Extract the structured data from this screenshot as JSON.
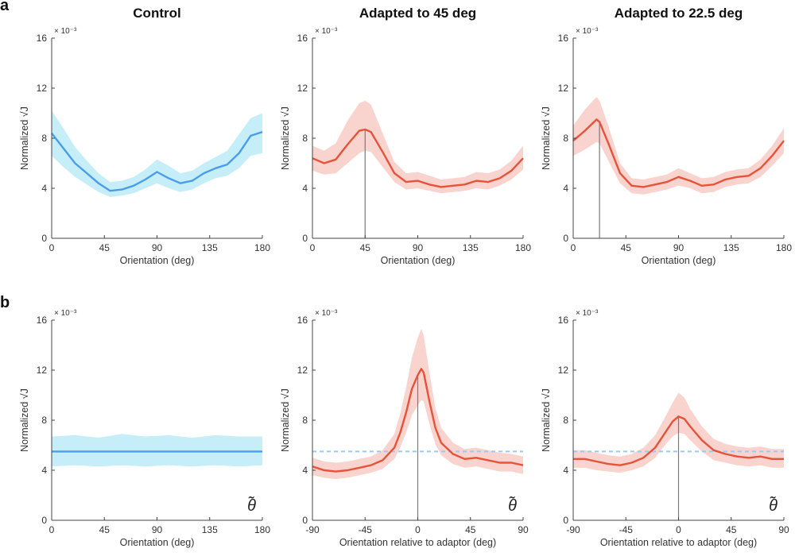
{
  "figure": {
    "row_labels": [
      "a",
      "b"
    ],
    "colors": {
      "control_line": "#4a9de8",
      "control_band": "#c5eef9",
      "adapted_line": "#e5533a",
      "adapted_band": "#f9d3cd",
      "reference_dashed": "#9cc8f2",
      "adaptor_marker": "#7a7a7a",
      "axis": "#444444"
    }
  },
  "chart_data": [
    {
      "id": "a1",
      "type": "line",
      "title": "Control",
      "xlabel": "Orientation (deg)",
      "ylabel": "Normalized √J",
      "y_exponent": "× 10⁻³",
      "xlim": [
        0,
        180
      ],
      "ylim": [
        0,
        16
      ],
      "xticks": [
        0,
        45,
        90,
        135,
        180
      ],
      "yticks": [
        0,
        4,
        8,
        12,
        16
      ],
      "adaptor": null,
      "reference": null,
      "theta_symbol": "",
      "series": [
        {
          "name": "Control",
          "x": [
            0,
            10,
            20,
            30,
            40,
            50,
            60,
            70,
            80,
            90,
            100,
            110,
            120,
            130,
            140,
            150,
            160,
            170,
            180
          ],
          "y": [
            8.4,
            7.2,
            6.0,
            5.2,
            4.4,
            3.8,
            3.9,
            4.2,
            4.7,
            5.3,
            4.8,
            4.4,
            4.6,
            5.2,
            5.6,
            5.9,
            6.8,
            8.2,
            8.5
          ],
          "lower": [
            6.6,
            5.7,
            4.9,
            4.3,
            3.7,
            3.3,
            3.4,
            3.6,
            4.0,
            4.4,
            4.0,
            3.7,
            3.9,
            4.4,
            4.8,
            5.0,
            5.6,
            6.6,
            6.8
          ],
          "upper": [
            10.2,
            8.8,
            7.3,
            6.2,
            5.2,
            4.5,
            4.6,
            4.9,
            5.5,
            6.3,
            5.8,
            5.2,
            5.4,
            6.0,
            6.5,
            7.0,
            8.3,
            9.6,
            10.0
          ]
        }
      ]
    },
    {
      "id": "a2",
      "type": "line",
      "title": "Adapted to 45 deg",
      "xlabel": "Orientation (deg)",
      "ylabel": "Normalized √J",
      "y_exponent": "× 10⁻³",
      "xlim": [
        0,
        180
      ],
      "ylim": [
        0,
        16
      ],
      "xticks": [
        0,
        45,
        90,
        135,
        180
      ],
      "yticks": [
        0,
        4,
        8,
        12,
        16
      ],
      "adaptor": 45,
      "reference": null,
      "theta_symbol": "",
      "series": [
        {
          "name": "Adapted to 45 deg",
          "x": [
            0,
            10,
            20,
            30,
            40,
            45,
            50,
            60,
            70,
            80,
            90,
            100,
            110,
            120,
            130,
            140,
            150,
            160,
            170,
            180
          ],
          "y": [
            6.4,
            6.0,
            6.3,
            7.5,
            8.6,
            8.7,
            8.5,
            6.9,
            5.2,
            4.5,
            4.6,
            4.3,
            4.1,
            4.2,
            4.3,
            4.6,
            4.5,
            4.8,
            5.4,
            6.4
          ],
          "lower": [
            5.4,
            5.1,
            5.2,
            6.0,
            6.8,
            7.0,
            6.9,
            5.7,
            4.5,
            3.9,
            4.0,
            3.8,
            3.6,
            3.7,
            3.8,
            4.0,
            3.9,
            4.2,
            4.7,
            5.5
          ],
          "upper": [
            7.4,
            7.0,
            7.6,
            9.4,
            10.8,
            11.0,
            10.7,
            8.4,
            6.1,
            5.2,
            5.3,
            5.0,
            4.7,
            4.8,
            4.9,
            5.3,
            5.2,
            5.5,
            6.2,
            7.4
          ]
        }
      ]
    },
    {
      "id": "a3",
      "type": "line",
      "title": "Adapted to 22.5 deg",
      "xlabel": "Orientation (deg)",
      "ylabel": "Normalized √J",
      "y_exponent": "× 10⁻³",
      "xlim": [
        0,
        180
      ],
      "ylim": [
        0,
        16
      ],
      "xticks": [
        0,
        45,
        90,
        135,
        180
      ],
      "yticks": [
        0,
        4,
        8,
        12,
        16
      ],
      "adaptor": 22.5,
      "reference": null,
      "theta_symbol": "",
      "series": [
        {
          "name": "Adapted to 22.5 deg",
          "x": [
            0,
            10,
            20,
            22.5,
            30,
            40,
            50,
            60,
            70,
            80,
            90,
            100,
            110,
            120,
            130,
            140,
            150,
            160,
            170,
            180
          ],
          "y": [
            7.8,
            8.6,
            9.5,
            9.3,
            7.6,
            5.2,
            4.2,
            4.1,
            4.3,
            4.5,
            4.9,
            4.6,
            4.2,
            4.3,
            4.7,
            4.9,
            5.0,
            5.6,
            6.6,
            7.8
          ],
          "lower": [
            6.6,
            7.1,
            7.7,
            7.6,
            6.2,
            4.4,
            3.6,
            3.5,
            3.7,
            3.9,
            4.2,
            4.0,
            3.6,
            3.7,
            4.1,
            4.3,
            4.4,
            4.9,
            5.8,
            6.8
          ],
          "upper": [
            9.0,
            10.3,
            11.3,
            11.0,
            9.0,
            6.0,
            4.8,
            4.7,
            4.9,
            5.1,
            5.6,
            5.2,
            4.8,
            4.9,
            5.3,
            5.5,
            5.6,
            6.3,
            7.4,
            8.8
          ]
        }
      ]
    },
    {
      "id": "b1",
      "type": "line",
      "title": "",
      "xlabel": "Orientation (deg)",
      "ylabel": "Normalized √J",
      "y_exponent": "× 10⁻³",
      "xlim": [
        0,
        180
      ],
      "ylim": [
        0,
        16
      ],
      "xticks": [
        0,
        45,
        90,
        135,
        180
      ],
      "yticks": [
        0,
        4,
        8,
        12,
        16
      ],
      "adaptor": null,
      "reference": null,
      "theta_symbol": "θ̃",
      "series": [
        {
          "name": "Control",
          "x": [
            0,
            20,
            40,
            60,
            80,
            100,
            120,
            140,
            160,
            180
          ],
          "y": [
            5.5,
            5.5,
            5.5,
            5.5,
            5.5,
            5.5,
            5.5,
            5.5,
            5.5,
            5.5
          ],
          "lower": [
            4.3,
            4.4,
            4.3,
            4.4,
            4.3,
            4.4,
            4.3,
            4.4,
            4.3,
            4.4
          ],
          "upper": [
            6.7,
            6.8,
            6.6,
            6.9,
            6.7,
            6.8,
            6.6,
            6.8,
            6.7,
            6.7
          ]
        }
      ]
    },
    {
      "id": "b2",
      "type": "line",
      "title": "",
      "xlabel": "Orientation relative to adaptor (deg)",
      "ylabel": "Normalized √J",
      "y_exponent": "× 10⁻³",
      "xlim": [
        -90,
        90
      ],
      "ylim": [
        0,
        16
      ],
      "xticks": [
        -90,
        -45,
        0,
        45,
        90
      ],
      "yticks": [
        0,
        4,
        8,
        12,
        16
      ],
      "adaptor": 0,
      "reference": 5.5,
      "theta_symbol": "θ̃",
      "series": [
        {
          "name": "Adapted to 45 deg",
          "x": [
            -90,
            -80,
            -70,
            -60,
            -50,
            -40,
            -30,
            -20,
            -15,
            -10,
            -5,
            0,
            3,
            5,
            10,
            15,
            20,
            30,
            40,
            50,
            60,
            70,
            80,
            90
          ],
          "y": [
            4.3,
            4.0,
            3.9,
            4.0,
            4.2,
            4.4,
            4.8,
            5.8,
            7.0,
            8.6,
            10.5,
            11.6,
            12.1,
            11.8,
            9.5,
            7.4,
            6.2,
            5.3,
            4.9,
            5.0,
            4.8,
            4.6,
            4.6,
            4.4
          ],
          "lower": [
            3.6,
            3.4,
            3.3,
            3.4,
            3.6,
            3.8,
            4.1,
            4.9,
            5.8,
            7.0,
            8.4,
            9.2,
            9.6,
            9.5,
            7.7,
            6.1,
            5.2,
            4.5,
            4.2,
            4.3,
            4.1,
            3.9,
            3.9,
            3.7
          ],
          "upper": [
            5.0,
            4.7,
            4.6,
            4.7,
            4.9,
            5.1,
            5.6,
            6.9,
            8.5,
            10.6,
            13.0,
            14.6,
            15.3,
            14.8,
            11.8,
            9.0,
            7.4,
            6.2,
            5.7,
            5.8,
            5.6,
            5.4,
            5.3,
            5.1
          ]
        }
      ]
    },
    {
      "id": "b3",
      "type": "line",
      "title": "",
      "xlabel": "Orientation relative to adaptor (deg)",
      "ylabel": "Normalized √J",
      "y_exponent": "× 10⁻³",
      "xlim": [
        -90,
        90
      ],
      "ylim": [
        0,
        16
      ],
      "xticks": [
        -90,
        -45,
        0,
        45,
        90
      ],
      "yticks": [
        0,
        4,
        8,
        12,
        16
      ],
      "adaptor": 0,
      "reference": 5.5,
      "theta_symbol": "θ̃",
      "series": [
        {
          "name": "Adapted to 22.5 deg",
          "x": [
            -90,
            -80,
            -70,
            -60,
            -50,
            -40,
            -30,
            -20,
            -10,
            -5,
            0,
            5,
            10,
            20,
            30,
            40,
            50,
            60,
            70,
            80,
            90
          ],
          "y": [
            4.9,
            4.9,
            4.7,
            4.5,
            4.4,
            4.6,
            5.0,
            5.8,
            7.2,
            7.9,
            8.3,
            8.1,
            7.5,
            6.4,
            5.6,
            5.3,
            5.1,
            5.0,
            5.1,
            4.9,
            4.9
          ],
          "lower": [
            4.2,
            4.2,
            4.0,
            3.9,
            3.8,
            4.0,
            4.3,
            5.0,
            6.2,
            6.7,
            7.0,
            6.9,
            6.4,
            5.5,
            4.8,
            4.6,
            4.4,
            4.3,
            4.4,
            4.2,
            4.2
          ],
          "upper": [
            5.6,
            5.6,
            5.4,
            5.2,
            5.1,
            5.3,
            5.8,
            6.8,
            8.5,
            9.4,
            10.2,
            9.8,
            8.9,
            7.5,
            6.5,
            6.1,
            5.9,
            5.8,
            5.9,
            5.7,
            5.7
          ]
        }
      ]
    }
  ]
}
